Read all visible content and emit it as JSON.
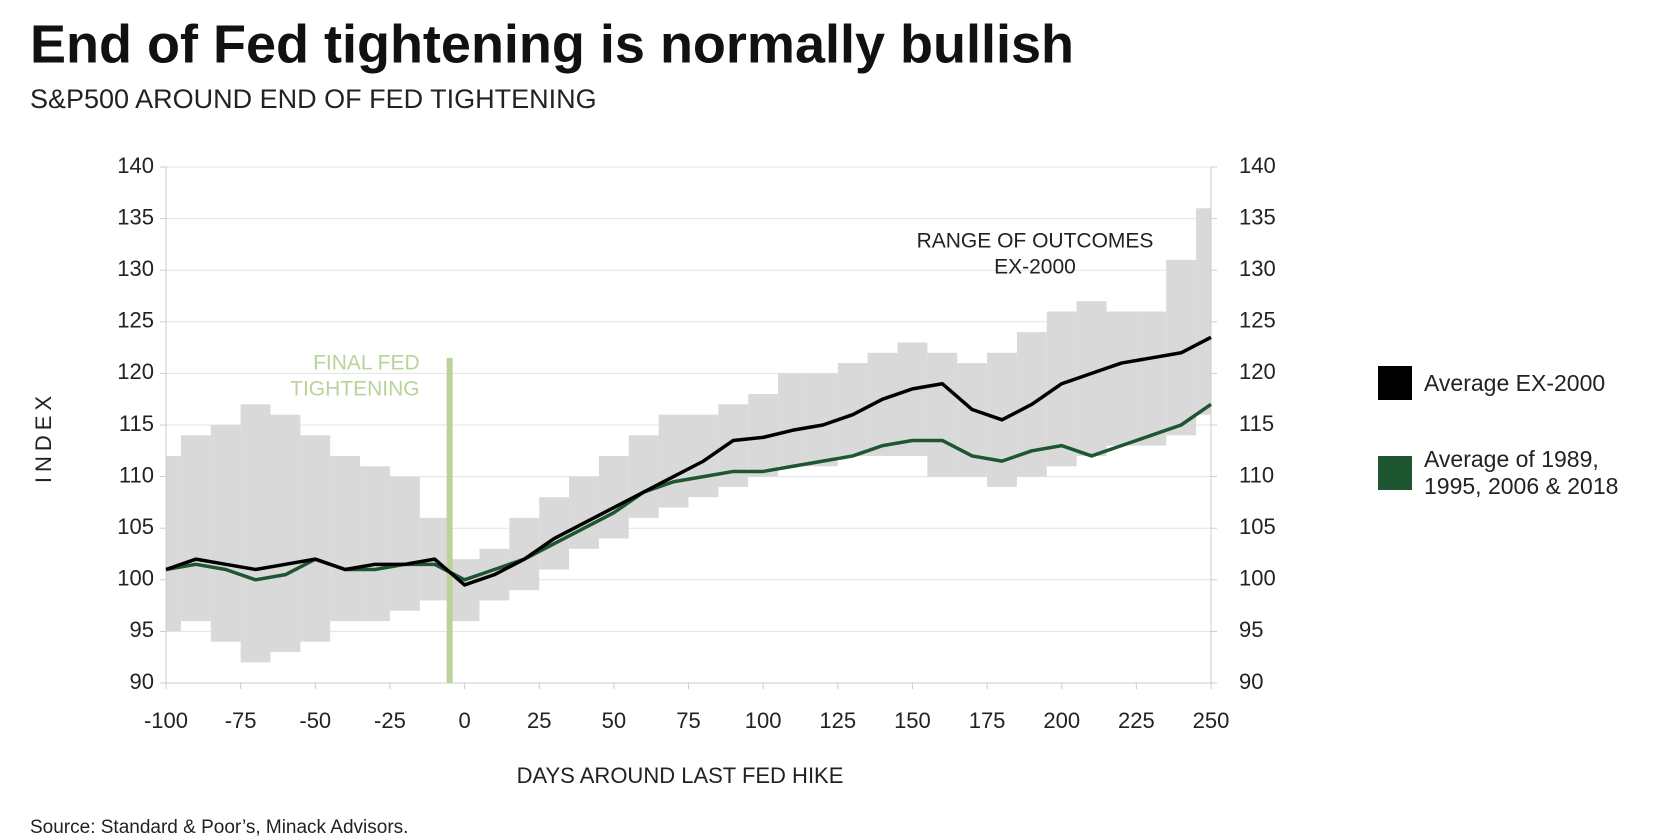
{
  "chart_data": {
    "type": "line",
    "title": "End of Fed tightening is normally bullish",
    "subtitle": "S&P500 AROUND END OF FED TIGHTENING",
    "x_label": "DAYS AROUND LAST FED HIKE",
    "y_label": "INDEX",
    "source": "Source:  Standard & Poor’s, Minack Advisors.",
    "xlim": [
      -100,
      250
    ],
    "xticks": [
      -100,
      -75,
      -50,
      -25,
      0,
      25,
      50,
      75,
      100,
      125,
      150,
      175,
      200,
      225,
      250
    ],
    "ylim": [
      90,
      140
    ],
    "yticks": [
      90,
      95,
      100,
      105,
      110,
      115,
      120,
      125,
      130,
      135,
      140
    ],
    "grid": true,
    "x": [
      -100,
      -90,
      -80,
      -70,
      -60,
      -50,
      -40,
      -30,
      -20,
      -10,
      0,
      10,
      20,
      30,
      40,
      50,
      60,
      70,
      80,
      90,
      100,
      110,
      120,
      130,
      140,
      150,
      160,
      170,
      180,
      190,
      200,
      210,
      220,
      230,
      240,
      250
    ],
    "band": {
      "label_lines": [
        "RANGE OF OUTCOMES",
        "EX-2000"
      ],
      "color": "#d9d9d9",
      "lower": [
        95,
        96,
        94,
        92,
        93,
        94,
        96,
        96,
        97,
        98,
        96,
        98,
        99,
        101,
        103,
        104,
        106,
        107,
        108,
        109,
        110,
        111,
        111,
        112,
        112,
        112,
        110,
        110,
        109,
        110,
        111,
        112,
        113,
        113,
        114,
        116
      ],
      "upper": [
        112,
        114,
        115,
        117,
        116,
        114,
        112,
        111,
        110,
        106,
        102,
        103,
        106,
        108,
        110,
        112,
        114,
        116,
        116,
        117,
        118,
        120,
        120,
        121,
        122,
        123,
        122,
        121,
        122,
        124,
        126,
        127,
        126,
        126,
        131,
        136
      ]
    },
    "marker": {
      "x": -5,
      "label_lines": [
        "FINAL FED",
        "TIGHTENING"
      ],
      "color": "#b9d39a"
    },
    "series": [
      {
        "name": "Average EX-2000",
        "color": "#000000",
        "values": [
          101,
          102,
          101.5,
          101,
          101.5,
          102,
          101,
          101.5,
          101.5,
          102,
          99.5,
          100.5,
          102,
          104,
          105.5,
          107,
          108.5,
          110,
          111.5,
          113.5,
          113.8,
          114.5,
          115,
          116,
          117.5,
          118.5,
          119,
          116.5,
          115.5,
          117,
          119,
          120,
          121,
          121.5,
          122,
          123.5
        ]
      },
      {
        "name": "Average of 1989, 1995, 2006 & 2018",
        "color": "#1e5631",
        "values": [
          101,
          101.5,
          101,
          100,
          100.5,
          102,
          101,
          101,
          101.5,
          101.5,
          100,
          101,
          102,
          103.5,
          105,
          106.5,
          108.5,
          109.5,
          110,
          110.5,
          110.5,
          111,
          111.5,
          112,
          113,
          113.5,
          113.5,
          112,
          111.5,
          112.5,
          113,
          112,
          113,
          114,
          115,
          117
        ]
      }
    ]
  }
}
